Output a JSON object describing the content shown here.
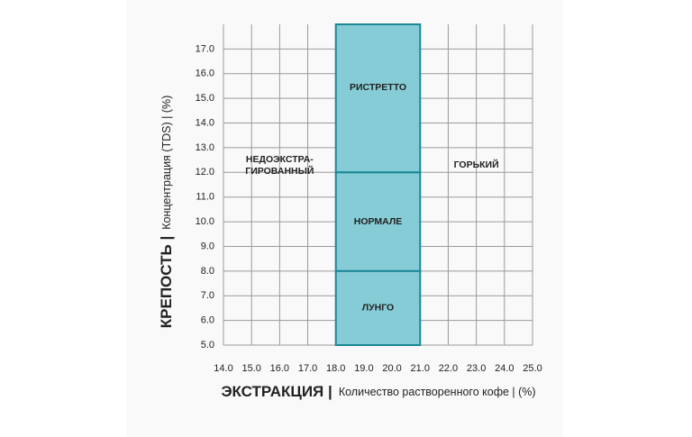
{
  "chart_data": {
    "type": "zones",
    "xlabel": {
      "main": "ЭКСТРАКЦИЯ |",
      "detail": "Количество растворенного кофе | (%)"
    },
    "ylabel": {
      "main": "КРЕПОСТЬ |",
      "detail": "Концентрация (TDS) | (%)"
    },
    "xlim": [
      14,
      25
    ],
    "xticks": [
      {
        "value": 14,
        "label": "14.0"
      },
      {
        "value": 15,
        "label": "15.0"
      },
      {
        "value": 16,
        "label": "16.0"
      },
      {
        "value": 17,
        "label": "17.0"
      },
      {
        "value": 18,
        "label": "18.0"
      },
      {
        "value": 19,
        "label": "19.0"
      },
      {
        "value": 20,
        "label": "20.0"
      },
      {
        "value": 21,
        "label": "21.0"
      },
      {
        "value": 22,
        "label": "22.0"
      },
      {
        "value": 23,
        "label": "23.0"
      },
      {
        "value": 24,
        "label": "24.0"
      },
      {
        "value": 25,
        "label": "25.0"
      }
    ],
    "ylim": [
      5,
      18
    ],
    "yticks": [
      {
        "value": 5,
        "label": "5.0"
      },
      {
        "value": 6,
        "label": "6.0"
      },
      {
        "value": 7,
        "label": "7.0"
      },
      {
        "value": 8,
        "label": "8.0"
      },
      {
        "value": 9,
        "label": "9.0"
      },
      {
        "value": 10,
        "label": "10.0"
      },
      {
        "value": 11,
        "label": "11.0"
      },
      {
        "value": 12,
        "label": "12.0"
      },
      {
        "value": 13,
        "label": "13.0"
      },
      {
        "value": 14,
        "label": "14.0"
      },
      {
        "value": 15,
        "label": "15.0"
      },
      {
        "value": 16,
        "label": "16.0"
      },
      {
        "value": 17,
        "label": "17.0"
      }
    ],
    "grid": true,
    "color": "#86ccd6",
    "edge_color": "#1b8797",
    "zones": [
      {
        "label": "РИСТРЕТТО",
        "x": [
          18,
          21
        ],
        "y": [
          12,
          18
        ]
      },
      {
        "label": "НОРМАЛЕ",
        "x": [
          18,
          21
        ],
        "y": [
          8,
          12
        ]
      },
      {
        "label": "ЛУНГО",
        "x": [
          18,
          21
        ],
        "y": [
          5,
          8
        ]
      }
    ],
    "left_label": [
      "НЕДОЭКСТРА-",
      "ГИРОВАННЫЙ"
    ],
    "right_label": "ГОРЬКИЙ"
  }
}
